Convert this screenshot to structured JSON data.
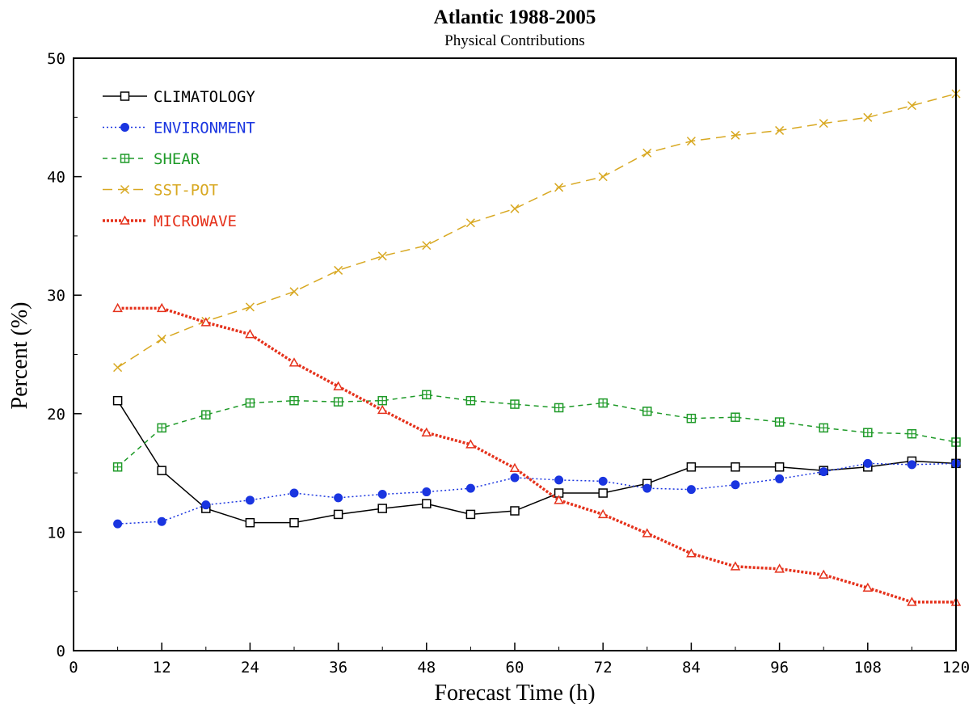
{
  "chart_data": {
    "type": "line",
    "title": "Atlantic 1988-2005",
    "subtitle": "Physical Contributions",
    "xlabel": "Forecast Time (h)",
    "ylabel": "Percent (%)",
    "xlim": [
      0,
      120
    ],
    "ylim": [
      0,
      50
    ],
    "xticks": [
      "0",
      "12",
      "24",
      "36",
      "48",
      "60",
      "72",
      "84",
      "96",
      "108",
      "120"
    ],
    "yticks": [
      "0",
      "10",
      "20",
      "30",
      "40",
      "50"
    ],
    "grid": false,
    "legend_position": "top-left",
    "x": [
      6,
      12,
      18,
      24,
      30,
      36,
      42,
      48,
      54,
      60,
      66,
      72,
      78,
      84,
      90,
      96,
      102,
      108,
      114,
      120
    ],
    "series": [
      {
        "name": "CLIMATOLOGY",
        "color": "#000000",
        "marker": "square",
        "line_style": "solid",
        "values": [
          21.1,
          15.2,
          12.0,
          10.8,
          10.8,
          11.5,
          12.0,
          12.4,
          11.5,
          11.8,
          13.3,
          13.3,
          14.1,
          15.5,
          15.5,
          15.5,
          15.2,
          15.5,
          16.0,
          15.8
        ]
      },
      {
        "name": "ENVIRONMENT",
        "color": "#1a35e0",
        "marker": "circle",
        "line_style": "dotted",
        "values": [
          10.7,
          10.9,
          12.3,
          12.7,
          13.3,
          12.9,
          13.2,
          13.4,
          13.7,
          14.6,
          14.4,
          14.3,
          13.7,
          13.6,
          14.0,
          14.5,
          15.1,
          15.8,
          15.7,
          15.8
        ]
      },
      {
        "name": "SHEAR",
        "color": "#1e9a28",
        "marker": "boxed-plus",
        "line_style": "dashed",
        "values": [
          15.5,
          18.8,
          19.9,
          20.9,
          21.1,
          21.0,
          21.1,
          21.6,
          21.1,
          20.8,
          20.5,
          20.9,
          20.2,
          19.6,
          19.7,
          19.3,
          18.8,
          18.4,
          18.3,
          17.6
        ]
      },
      {
        "name": "SST-POT",
        "color": "#d8a821",
        "marker": "x",
        "line_style": "long-dash",
        "values": [
          23.9,
          26.3,
          27.8,
          29.0,
          30.3,
          32.1,
          33.3,
          34.2,
          36.1,
          37.3,
          39.1,
          40.0,
          42.0,
          43.0,
          43.5,
          43.9,
          44.5,
          45.0,
          46.0,
          47.0
        ]
      },
      {
        "name": "MICROWAVE",
        "color": "#e5321c",
        "marker": "triangle",
        "line_style": "heavy-dotted",
        "values": [
          28.9,
          28.9,
          27.7,
          26.7,
          24.3,
          22.3,
          20.3,
          18.4,
          17.4,
          15.4,
          12.7,
          11.5,
          9.9,
          8.2,
          7.1,
          6.9,
          6.4,
          5.3,
          4.1,
          4.1
        ]
      }
    ]
  }
}
